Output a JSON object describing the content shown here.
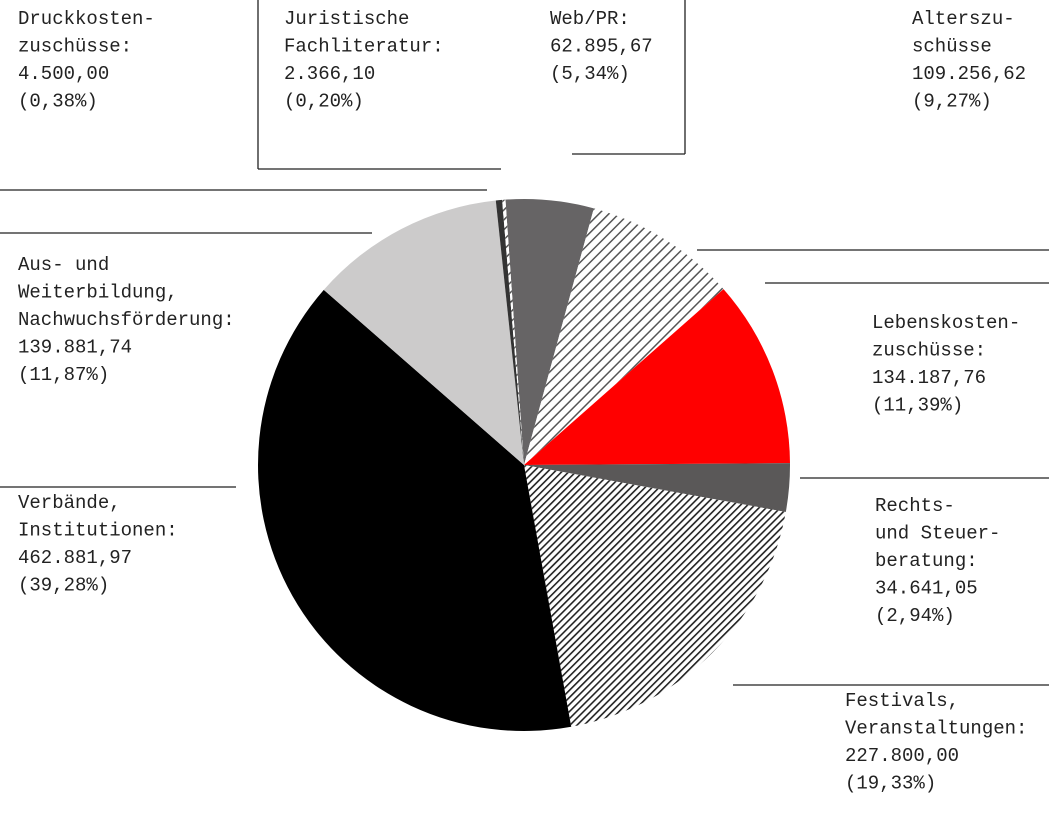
{
  "chart_data": {
    "type": "pie",
    "categories": [
      [
        "Web/PR:"
      ],
      [
        "Alterszu-",
        "schüsse"
      ],
      [
        "Lebenskosten-",
        "zuschüsse:"
      ],
      [
        "Rechts-",
        "und Steuer-",
        "beratung:"
      ],
      [
        "Festivals,",
        "Veranstaltungen:"
      ],
      [
        "Verbände,",
        "Institutionen:"
      ],
      [
        "Aus- und",
        "Weiterbildung,",
        "Nachwuchsförderung:"
      ],
      [
        "Druckkosten-",
        "zuschüsse:"
      ],
      [
        "Juristische",
        "Fachliteratur:"
      ]
    ],
    "values": [
      62895.67,
      109256.62,
      134187.76,
      34641.05,
      227800.0,
      462881.97,
      139881.74,
      4500.0,
      2366.1
    ],
    "value_labels": [
      "62.895,67",
      "109.256,62",
      "134.187,76",
      "34.641,05",
      "227.800,00",
      "462.881,97",
      "139.881,74",
      "4.500,00",
      "2.366,10"
    ],
    "percents": [
      5.34,
      9.27,
      11.39,
      2.94,
      19.33,
      39.28,
      11.87,
      0.38,
      0.2
    ],
    "percent_labels": [
      "(5,34%)",
      "(9,27%)",
      "(11,39%)",
      "(2,94%)",
      "(19,33%)",
      "(39,28%)",
      "(11,87%)",
      "(0,38%)",
      "(0,20%)"
    ],
    "colors": [
      "#666465",
      "hatch-light",
      "#ff0000",
      "#5a5858",
      "hatch-dark",
      "#000000",
      "#cccbcb",
      "#333333",
      "hatch-light"
    ]
  }
}
